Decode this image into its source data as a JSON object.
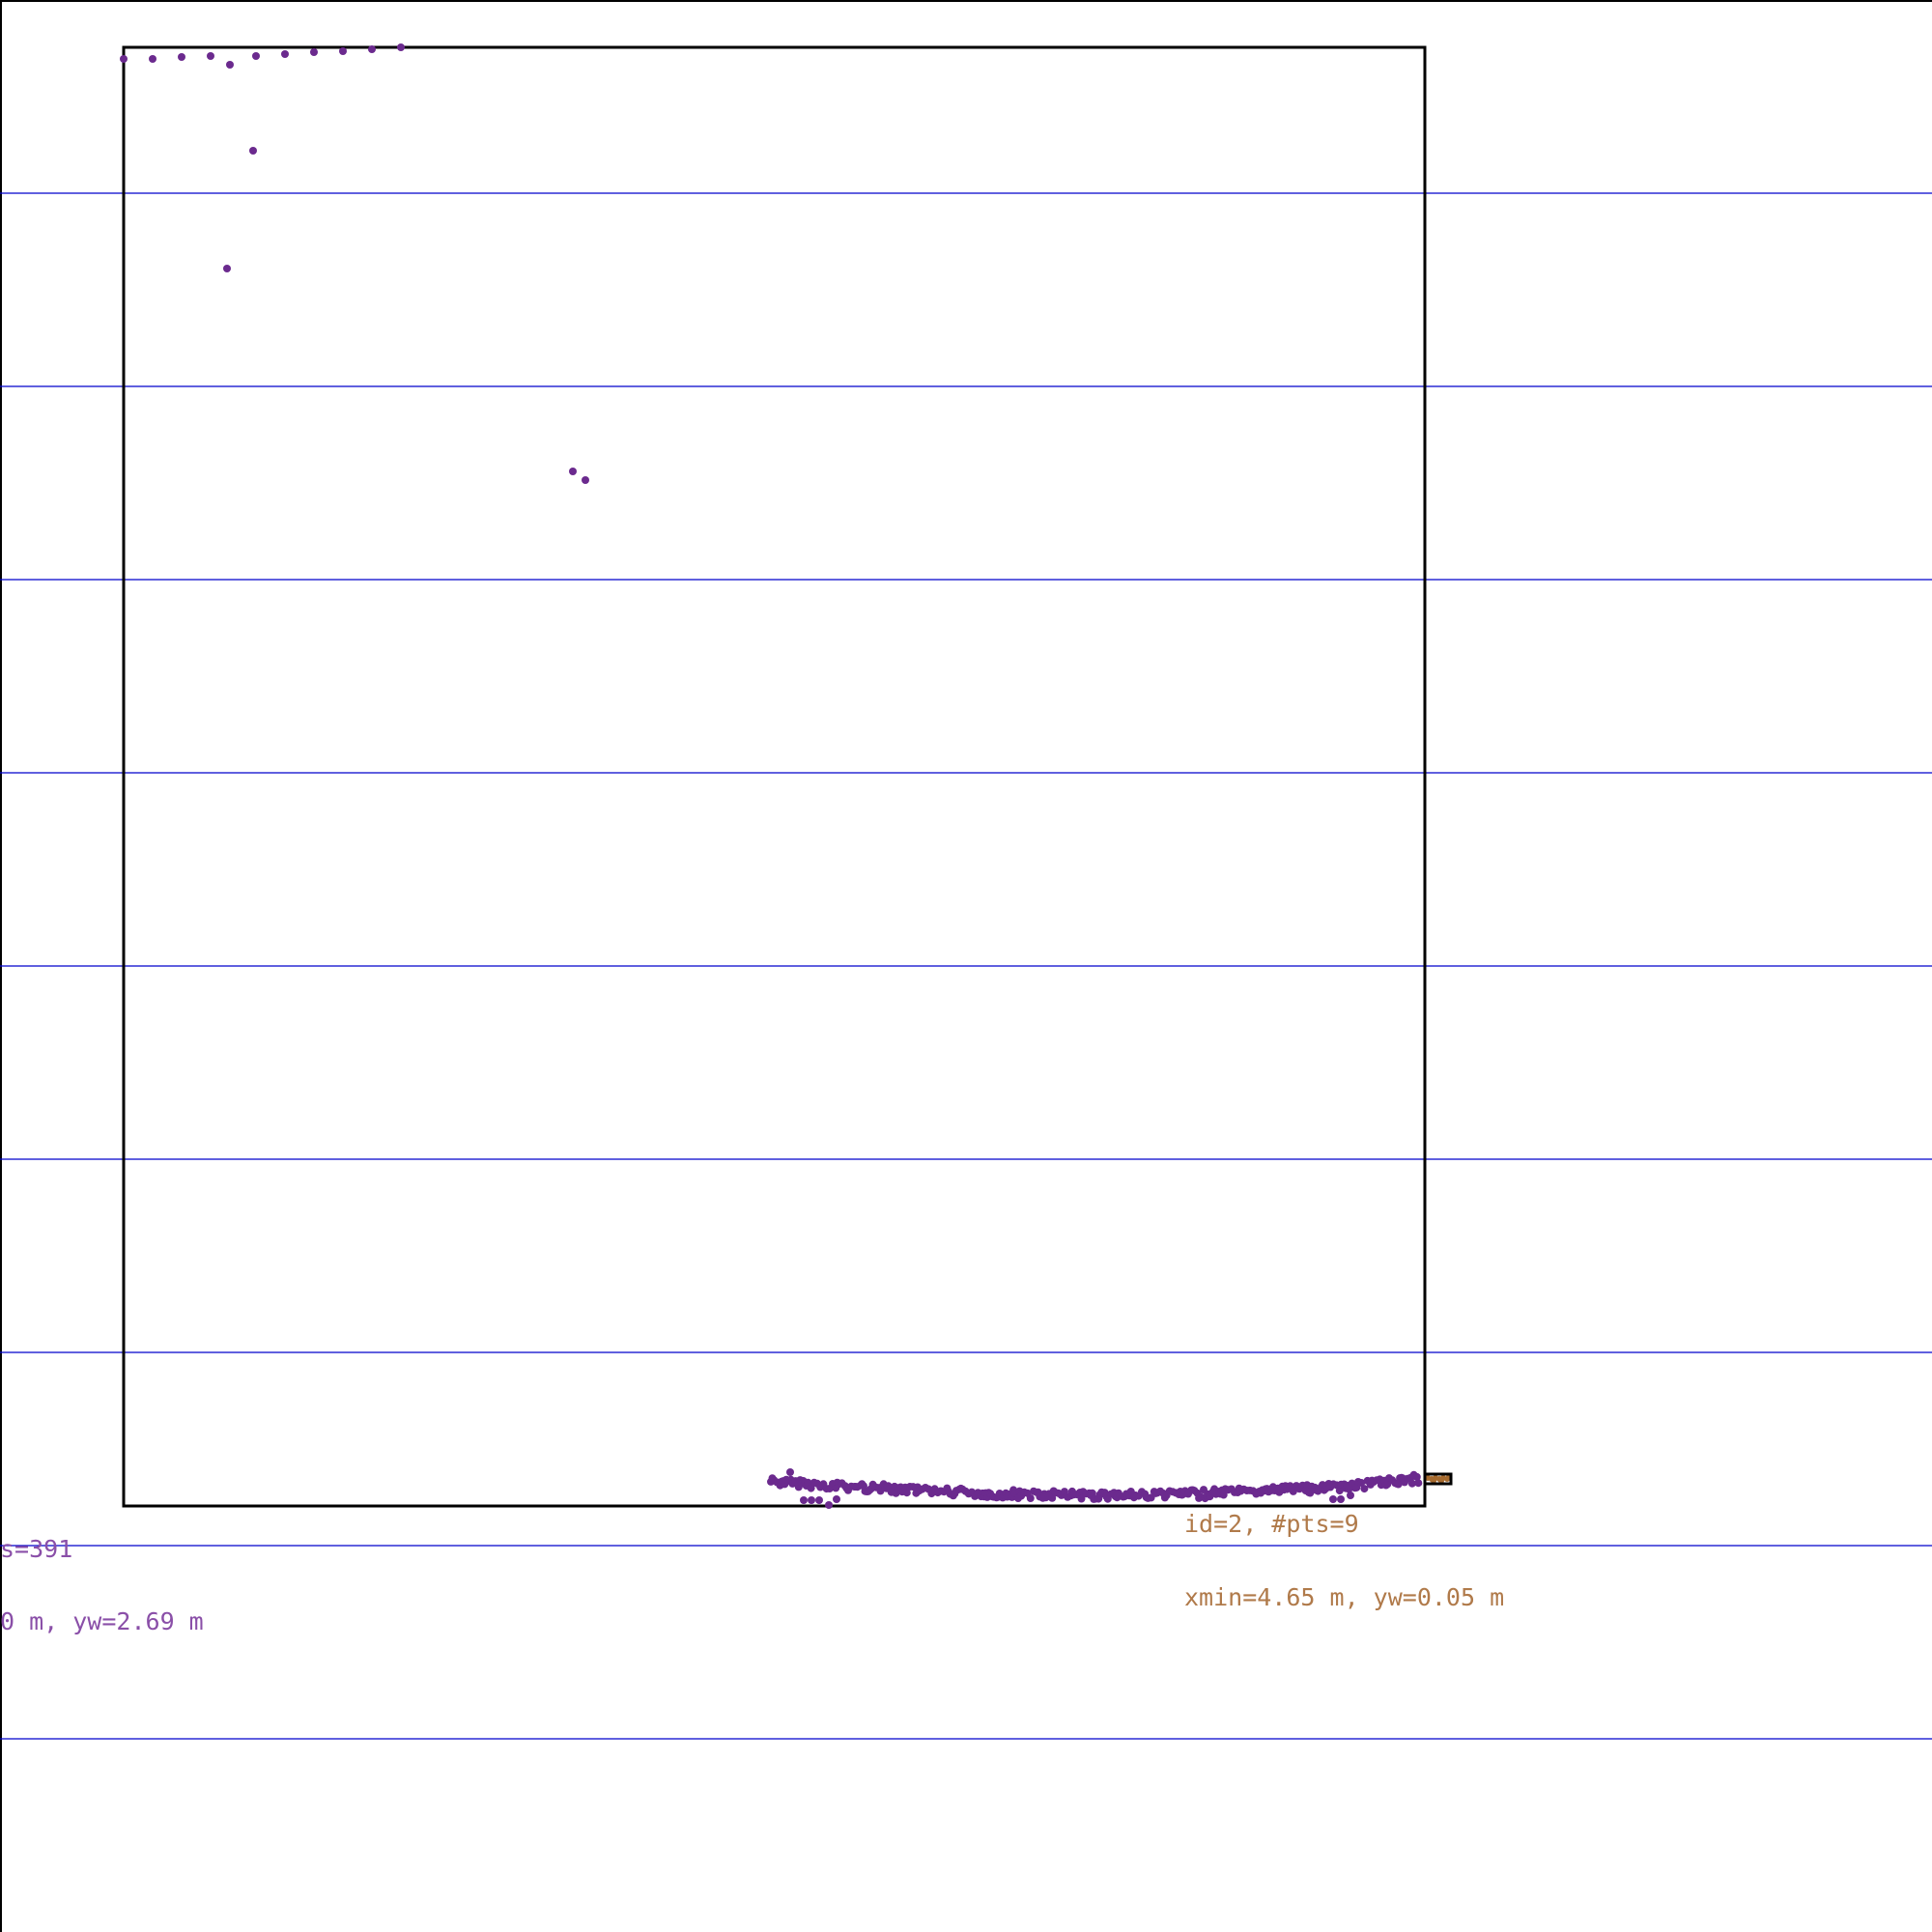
{
  "colors": {
    "background": "#ffffff",
    "grid_line": "#0000cc",
    "border": "#000000",
    "cluster1": "#6b2a8e",
    "cluster1_label": "#8a4fa8",
    "cluster2": "#a66a2e",
    "cluster2_label": "#b07a4a"
  },
  "clusters": [
    {
      "label_line1": "s=391",
      "label_line2": "0 m, yw=2.69 m"
    },
    {
      "label_line1": "id=2, #pts=9",
      "label_line2": "xmin=4.65 m, yw=0.05 m"
    }
  ]
}
